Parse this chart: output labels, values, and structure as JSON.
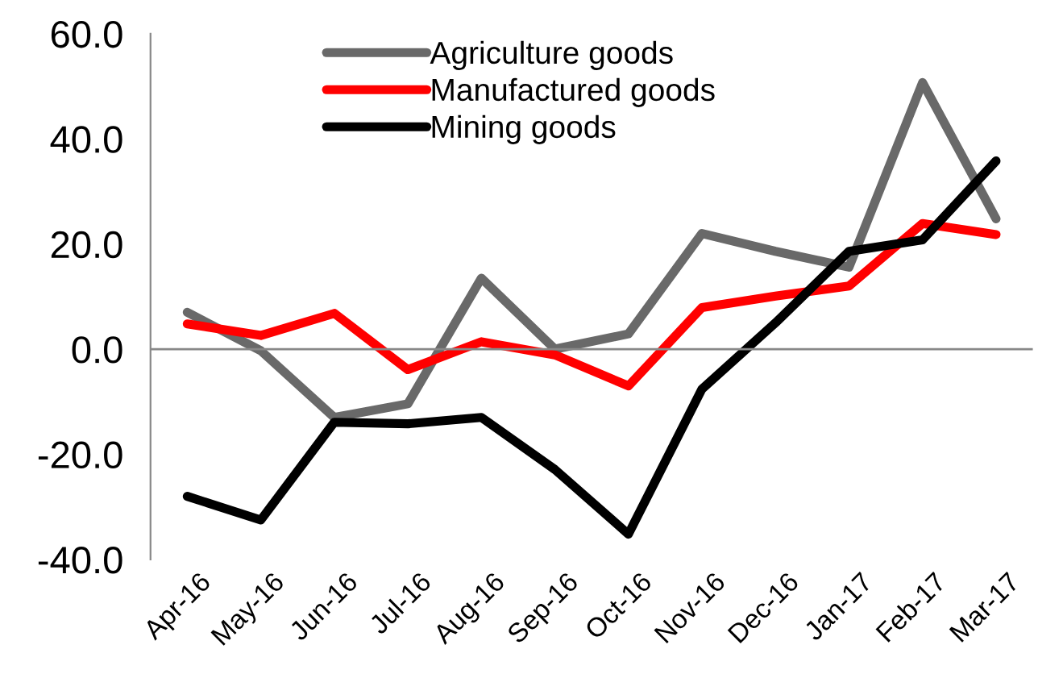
{
  "chart_data": {
    "type": "line",
    "categories": [
      "Apr-16",
      "May-16",
      "Jun-16",
      "Jul-16",
      "Aug-16",
      "Sep-16",
      "Oct-16",
      "Nov-16",
      "Dec-16",
      "Jan-17",
      "Feb-17",
      "Mar-17"
    ],
    "series": [
      {
        "name": "Agriculture goods",
        "color": "#696969",
        "values": [
          7.0,
          -0.3,
          -13.0,
          -10.4,
          13.5,
          0.0,
          2.9,
          22.0,
          18.6,
          15.6,
          50.7,
          24.8
        ]
      },
      {
        "name": "Manufactured goods",
        "color": "#ff0000",
        "values": [
          4.8,
          2.6,
          6.8,
          -3.9,
          1.4,
          -1.1,
          -7.0,
          7.9,
          10.1,
          12.0,
          23.9,
          21.8
        ]
      },
      {
        "name": "Mining goods",
        "color": "#000000",
        "values": [
          -28.0,
          -32.5,
          -13.9,
          -14.2,
          -13.0,
          -22.9,
          -35.2,
          -7.6,
          5.0,
          18.6,
          20.8,
          35.8
        ]
      }
    ],
    "ylim": [
      -40,
      60
    ],
    "yticks": [
      {
        "value": -40,
        "label": "-40.0"
      },
      {
        "value": -20,
        "label": "-20.0"
      },
      {
        "value": 0,
        "label": "0.0"
      },
      {
        "value": 20,
        "label": "20.0"
      },
      {
        "value": 40,
        "label": "40.0"
      },
      {
        "value": 60,
        "label": "60.0"
      }
    ],
    "ref_lines": [
      {
        "axis": "y",
        "value": 0,
        "color": "#888888"
      }
    ],
    "legend": "top",
    "marker": "none",
    "line_style": "solid"
  }
}
